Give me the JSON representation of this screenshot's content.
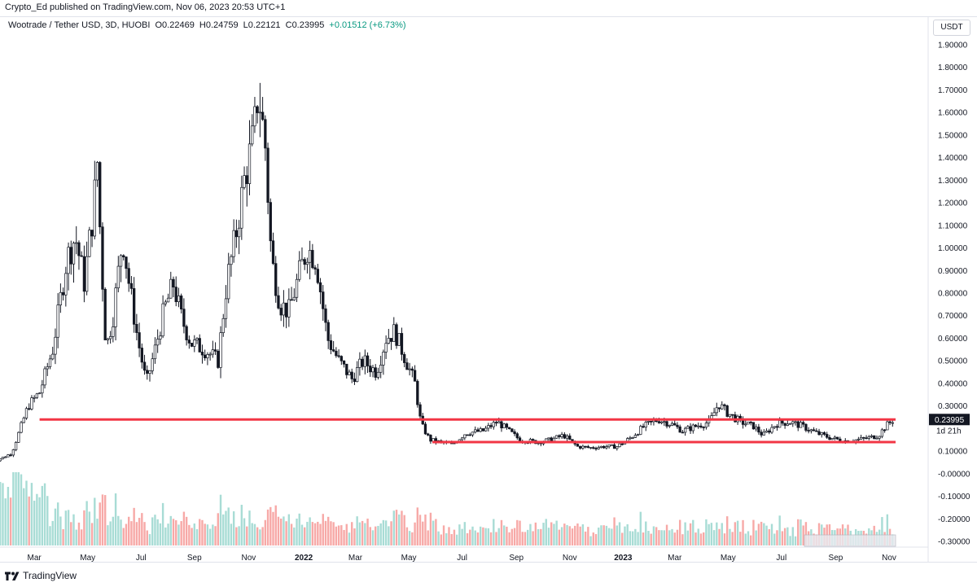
{
  "header": {
    "published": "Crypto_Ed published on TradingView.com, Nov 06, 2023 20:53 UTC+1"
  },
  "legend": {
    "symbol": "Wootrade / Tether USD, 3D, HUOBI",
    "open": "O0.22469",
    "high": "H0.24759",
    "low": "L0.22121",
    "close": "C0.23995",
    "change": "+0.01512 (+6.73%)"
  },
  "currency_button": "USDT",
  "footer": {
    "brand": "TradingView"
  },
  "colors": {
    "candle": "#131722",
    "support_line": "#f23645",
    "volume_up": "#a8dcd5",
    "volume_down": "#f7a9a7",
    "price_label_bg": "#131722",
    "range_highlight": "#e9eaf0"
  },
  "chart_data": {
    "type": "candlestick",
    "title": "Wootrade / Tether USD, 3D, HUOBI",
    "y_ticks": [
      "1.90000",
      "1.80000",
      "1.70000",
      "1.60000",
      "1.50000",
      "1.40000",
      "1.30000",
      "1.20000",
      "1.10000",
      "1.00000",
      "0.90000",
      "0.80000",
      "0.70000",
      "0.60000",
      "0.50000",
      "0.40000",
      "0.30000",
      "0.10000",
      "-0.00000",
      "-0.10000",
      "-0.20000",
      "-0.30000"
    ],
    "x_ticks": [
      {
        "label": "Mar",
        "bold": false
      },
      {
        "label": "May",
        "bold": false
      },
      {
        "label": "Jul",
        "bold": false
      },
      {
        "label": "Sep",
        "bold": false
      },
      {
        "label": "Nov",
        "bold": false
      },
      {
        "label": "2022",
        "bold": true
      },
      {
        "label": "Mar",
        "bold": false
      },
      {
        "label": "May",
        "bold": false
      },
      {
        "label": "Jul",
        "bold": false
      },
      {
        "label": "Sep",
        "bold": false
      },
      {
        "label": "Nov",
        "bold": false
      },
      {
        "label": "2023",
        "bold": true
      },
      {
        "label": "Mar",
        "bold": false
      },
      {
        "label": "May",
        "bold": false
      },
      {
        "label": "Jul",
        "bold": false
      },
      {
        "label": "Sep",
        "bold": false
      },
      {
        "label": "Nov",
        "bold": false
      }
    ],
    "last_price": "0.23995",
    "countdown": "1d 21h",
    "ylim": [
      -0.3,
      1.9
    ],
    "close_path": [
      [
        "2021-01-10",
        0.05
      ],
      [
        "2021-02-01",
        0.09
      ],
      [
        "2021-02-20",
        0.3
      ],
      [
        "2021-03-05",
        0.36
      ],
      [
        "2021-03-20",
        0.55
      ],
      [
        "2021-04-05",
        0.95
      ],
      [
        "2021-04-15",
        1.05
      ],
      [
        "2021-04-25",
        0.85
      ],
      [
        "2021-05-05",
        1.15
      ],
      [
        "2021-05-10",
        1.38
      ],
      [
        "2021-05-14",
        1.0
      ],
      [
        "2021-05-20",
        0.55
      ],
      [
        "2021-05-28",
        0.7
      ],
      [
        "2021-06-08",
        1.05
      ],
      [
        "2021-06-15",
        0.85
      ],
      [
        "2021-06-25",
        0.6
      ],
      [
        "2021-07-05",
        0.4
      ],
      [
        "2021-07-15",
        0.55
      ],
      [
        "2021-07-25",
        0.72
      ],
      [
        "2021-08-05",
        0.84
      ],
      [
        "2021-08-15",
        0.68
      ],
      [
        "2021-08-25",
        0.58
      ],
      [
        "2021-09-10",
        0.55
      ],
      [
        "2021-09-25",
        0.5
      ],
      [
        "2021-10-05",
        0.85
      ],
      [
        "2021-10-15",
        1.05
      ],
      [
        "2021-10-25",
        1.3
      ],
      [
        "2021-11-05",
        1.5
      ],
      [
        "2021-11-10",
        1.7
      ],
      [
        "2021-11-18",
        1.45
      ],
      [
        "2021-11-25",
        0.95
      ],
      [
        "2021-12-05",
        0.75
      ],
      [
        "2021-12-15",
        0.72
      ],
      [
        "2021-12-28",
        0.9
      ],
      [
        "2022-01-05",
        1.0
      ],
      [
        "2022-01-15",
        0.95
      ],
      [
        "2022-01-28",
        0.6
      ],
      [
        "2022-02-10",
        0.5
      ],
      [
        "2022-02-25",
        0.42
      ],
      [
        "2022-03-10",
        0.5
      ],
      [
        "2022-03-25",
        0.45
      ],
      [
        "2022-04-05",
        0.6
      ],
      [
        "2022-04-15",
        0.63
      ],
      [
        "2022-04-28",
        0.5
      ],
      [
        "2022-05-08",
        0.4
      ],
      [
        "2022-05-15",
        0.22
      ],
      [
        "2022-05-25",
        0.15
      ],
      [
        "2022-06-05",
        0.14
      ],
      [
        "2022-06-20",
        0.13
      ],
      [
        "2022-07-05",
        0.18
      ],
      [
        "2022-07-25",
        0.19
      ],
      [
        "2022-08-10",
        0.23
      ],
      [
        "2022-08-20",
        0.2
      ],
      [
        "2022-09-05",
        0.15
      ],
      [
        "2022-09-25",
        0.14
      ],
      [
        "2022-10-10",
        0.15
      ],
      [
        "2022-10-25",
        0.17
      ],
      [
        "2022-11-10",
        0.12
      ],
      [
        "2022-11-25",
        0.115
      ],
      [
        "2022-12-10",
        0.12
      ],
      [
        "2022-12-25",
        0.12
      ],
      [
        "2023-01-10",
        0.16
      ],
      [
        "2023-01-25",
        0.21
      ],
      [
        "2023-02-10",
        0.24
      ],
      [
        "2023-02-25",
        0.22
      ],
      [
        "2023-03-10",
        0.19
      ],
      [
        "2023-03-25",
        0.21
      ],
      [
        "2023-04-10",
        0.23
      ],
      [
        "2023-04-20",
        0.31
      ],
      [
        "2023-04-30",
        0.27
      ],
      [
        "2023-05-15",
        0.23
      ],
      [
        "2023-05-30",
        0.21
      ],
      [
        "2023-06-10",
        0.17
      ],
      [
        "2023-06-25",
        0.22
      ],
      [
        "2023-07-10",
        0.23
      ],
      [
        "2023-07-25",
        0.21
      ],
      [
        "2023-08-10",
        0.18
      ],
      [
        "2023-08-25",
        0.16
      ],
      [
        "2023-09-10",
        0.145
      ],
      [
        "2023-09-25",
        0.15
      ],
      [
        "2023-10-10",
        0.16
      ],
      [
        "2023-10-20",
        0.17
      ],
      [
        "2023-10-28",
        0.21
      ],
      [
        "2023-11-06",
        0.24
      ]
    ],
    "support_lines": [
      {
        "from": "2021-03-05",
        "to": "2023-11-10",
        "value": 0.24
      },
      {
        "from": "2022-05-28",
        "to": "2023-11-10",
        "value": 0.14
      }
    ]
  }
}
